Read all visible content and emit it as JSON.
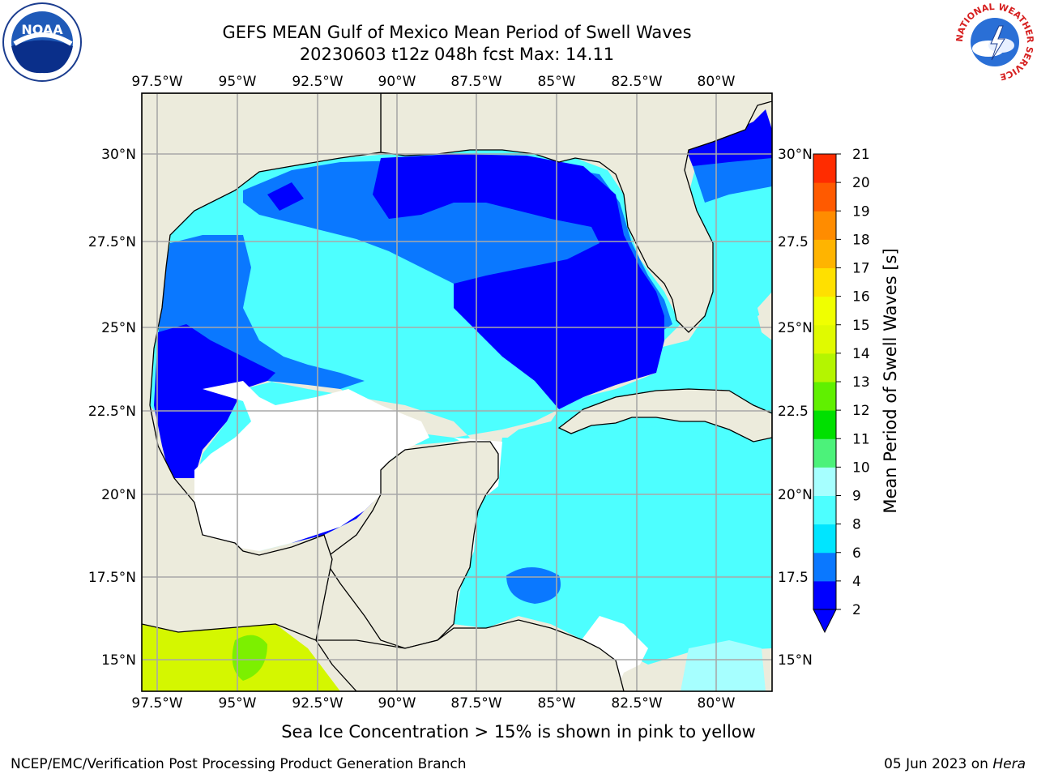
{
  "title": "GEFS MEAN Gulf of Mexico Mean Period of Swell Waves",
  "subtitle": "20230603 t12z 048h fcst   Max: 14.11",
  "colorbar": {
    "label": "Mean Period of Swell Waves [s]",
    "ticks": [
      "2",
      "4",
      "6",
      "8",
      "9",
      "10",
      "11",
      "12",
      "13",
      "14",
      "15",
      "16",
      "17",
      "18",
      "19",
      "20",
      "21"
    ],
    "colors": [
      "#0000ff",
      "#0a78ff",
      "#00e5ff",
      "#4dffff",
      "#a6ffff",
      "#4cf27a",
      "#00e000",
      "#60f000",
      "#b4f500",
      "#e0fa00",
      "#f0ff00",
      "#ffe000",
      "#ffb400",
      "#ff8c00",
      "#ff5a00",
      "#ff2c00",
      "#ff0000"
    ]
  },
  "longitude_labels": [
    "97.5°W",
    "95°W",
    "92.5°W",
    "90°W",
    "87.5°W",
    "85°W",
    "82.5°W",
    "80°W"
  ],
  "latitude_labels_left": [
    "30°N",
    "27.5°N",
    "25°N",
    "22.5°N",
    "20°N",
    "17.5°N",
    "15°N"
  ],
  "latitude_labels_right": [
    "30°N",
    "27.5",
    "25°N",
    "22.5",
    "20°N",
    "17.5",
    "15°N"
  ],
  "sea_ice_note": "Sea Ice Concentration > 15% is shown in pink to yellow",
  "footer": {
    "credit": "NCEP/EMC/Verification Post Processing Product Generation Branch",
    "date": "05 Jun 2023 on",
    "host": "Hera"
  },
  "logos": {
    "left": "NOAA",
    "right_ring": "NATIONAL WEATHER SERVICE"
  }
}
